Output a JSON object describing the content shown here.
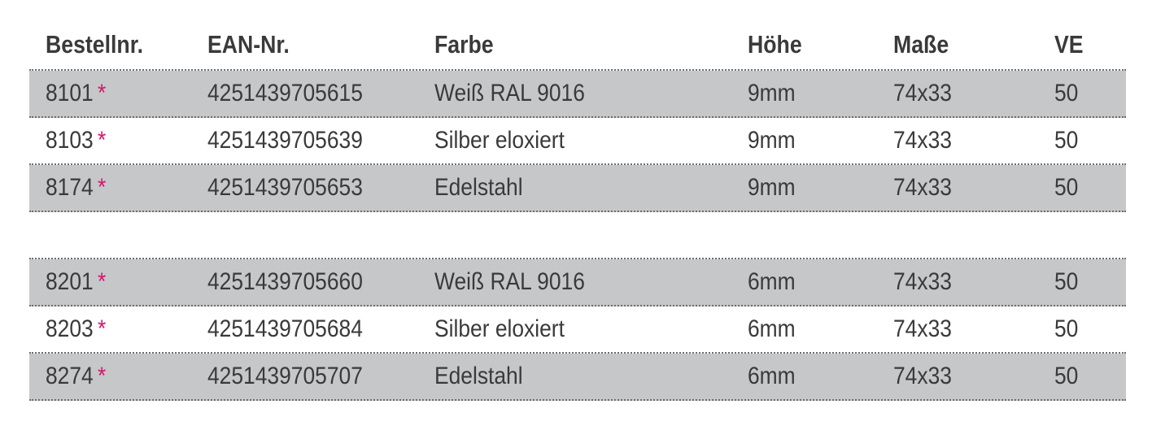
{
  "headers": {
    "bestellnr": "Bestellnr.",
    "ean": "EAN-Nr.",
    "farbe": "Farbe",
    "hoehe": "Höhe",
    "masse": "Maße",
    "ve": "VE"
  },
  "star_symbol": "*",
  "colors": {
    "star": "#d0196f",
    "shade": "#c6c7c9",
    "text": "#3a3a3a"
  },
  "group1": [
    {
      "nr": "8101",
      "ean": "4251439705615",
      "farbe": "Weiß RAL 9016",
      "hoehe": "9mm",
      "masse": "74x33",
      "ve": "50"
    },
    {
      "nr": "8103",
      "ean": "4251439705639",
      "farbe": "Silber eloxiert",
      "hoehe": "9mm",
      "masse": "74x33",
      "ve": "50"
    },
    {
      "nr": "8174",
      "ean": "4251439705653",
      "farbe": "Edelstahl",
      "hoehe": "9mm",
      "masse": "74x33",
      "ve": "50"
    }
  ],
  "group2": [
    {
      "nr": "8201",
      "ean": "4251439705660",
      "farbe": "Weiß RAL 9016",
      "hoehe": "6mm",
      "masse": "74x33",
      "ve": "50"
    },
    {
      "nr": "8203",
      "ean": "4251439705684",
      "farbe": "Silber eloxiert",
      "hoehe": "6mm",
      "masse": "74x33",
      "ve": "50"
    },
    {
      "nr": "8274",
      "ean": "4251439705707",
      "farbe": "Edelstahl",
      "hoehe": "6mm",
      "masse": "74x33",
      "ve": "50"
    }
  ]
}
